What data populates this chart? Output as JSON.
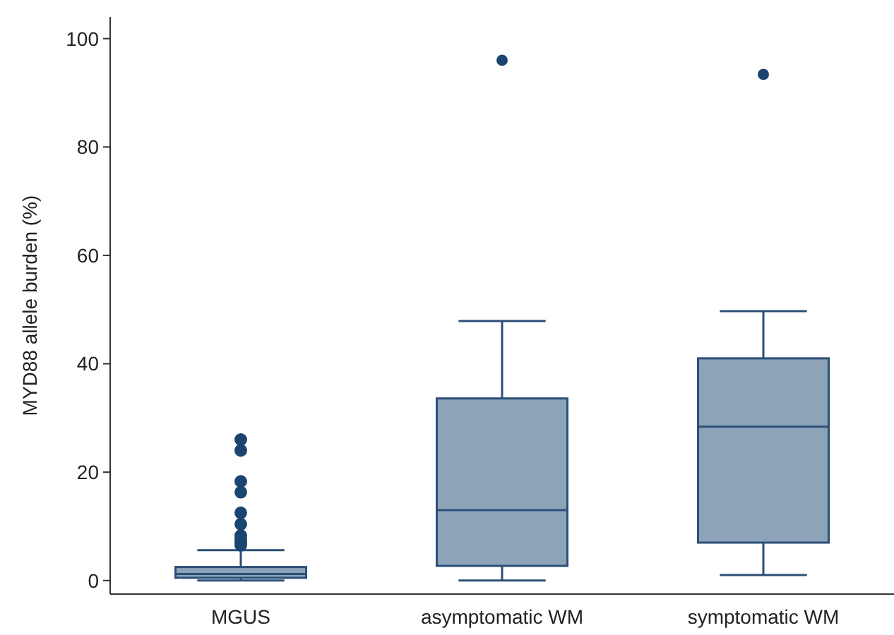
{
  "chart_data": {
    "type": "box",
    "ylabel": "MYD88 allele burden (%)",
    "categories": [
      "MGUS",
      "asymptomatic WM",
      "symptomatic WM"
    ],
    "ylim": [
      -2.5,
      104
    ],
    "yticks": [
      0,
      20,
      40,
      60,
      80,
      100
    ],
    "grid": false,
    "color": "#8da3b8",
    "boxes": [
      {
        "low": 0,
        "q1": 0.5,
        "median": 1.2,
        "q3": 2.5,
        "high": 5.6,
        "outliers": [
          6.5,
          7,
          7.5,
          8.3,
          10.4,
          12.5,
          16.3,
          18.3,
          24,
          26
        ]
      },
      {
        "low": 0,
        "q1": 2.7,
        "median": 13,
        "q3": 33.6,
        "high": 47.9,
        "outliers": [
          96
        ]
      },
      {
        "low": 1,
        "q1": 7,
        "median": 28.4,
        "q3": 41,
        "high": 49.7,
        "outliers": [
          93.4
        ]
      }
    ]
  }
}
